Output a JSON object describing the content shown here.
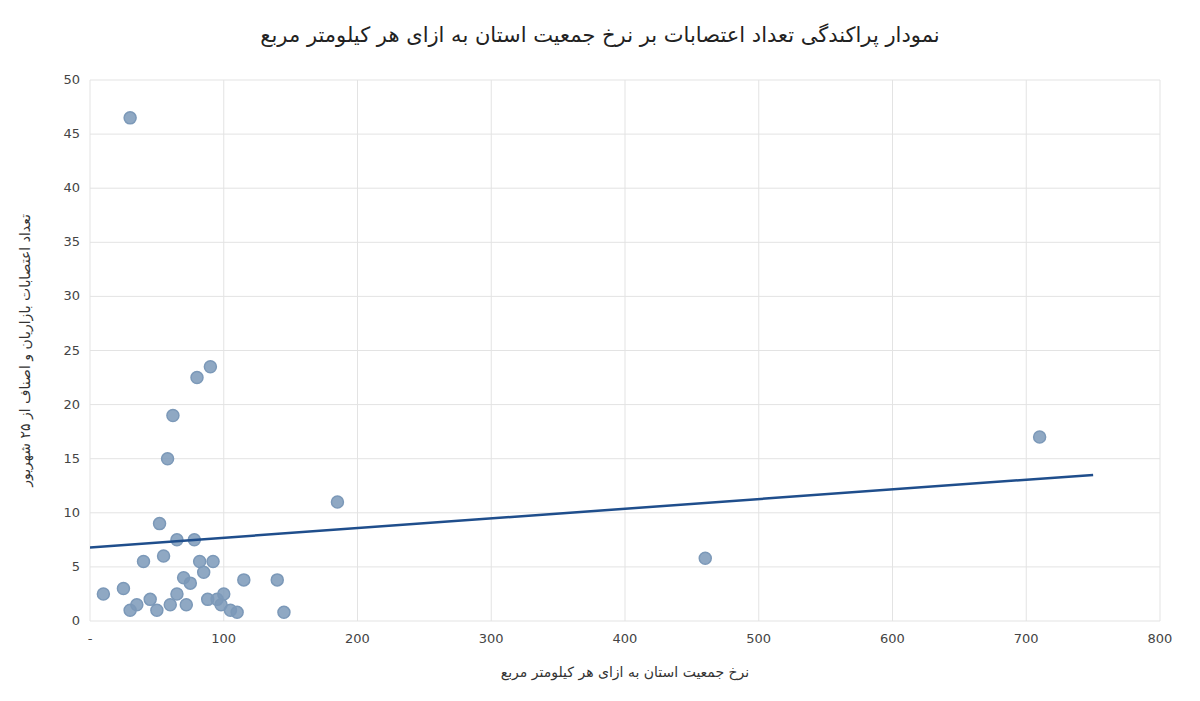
{
  "chart_data": {
    "type": "scatter",
    "title": "نمودار پراکندگی تعداد اعتصابات بر نرخ جمعیت استان به ازای هر کیلومتر مربع",
    "x_label": "نرخ جمعیت استان به ازای هر کیلومتر مربع",
    "y_label": "تعداد اعتصابات بازاریان و اصناف از ۲۵ شهریور",
    "series": [
      {
        "color": "#92B4D9",
        "x": [
          10,
          25,
          30,
          35,
          40,
          45,
          50,
          52,
          55,
          58,
          60,
          62,
          65,
          65,
          70,
          72,
          75,
          78,
          80,
          82,
          85,
          88,
          90,
          92,
          95,
          98,
          100,
          105,
          110,
          115,
          140,
          145,
          185,
          460,
          710
        ],
        "values": [
          2.5,
          3,
          1,
          1.5,
          5.5,
          2,
          1,
          9,
          6,
          15,
          1.5,
          19,
          7.5,
          2.5,
          4,
          1.5,
          3.5,
          7.5,
          22.5,
          5.5,
          4.5,
          2,
          23.5,
          5.5,
          2,
          1.5,
          2.5,
          1,
          0.8,
          3.8,
          3.8,
          0.8,
          11,
          5.8,
          17
        ]
      },
      {
        "color": "#92B4D9",
        "x": [
          30
        ],
        "values": [
          46.5
        ]
      },
      {
        "type": "line",
        "color": "#1F4E8C",
        "x": [
          0,
          750
        ],
        "values": [
          6.8,
          13.5
        ]
      }
    ],
    "xlim": [
      0,
      800
    ],
    "ylim": [
      0,
      50
    ],
    "xticks": [
      {
        "value": 0,
        "label": "-"
      },
      100,
      200,
      300,
      400,
      500,
      600,
      700,
      800
    ],
    "yticks": [
      0,
      5,
      10,
      15,
      20,
      25,
      30,
      35,
      40,
      45,
      50
    ],
    "grid": true
  }
}
